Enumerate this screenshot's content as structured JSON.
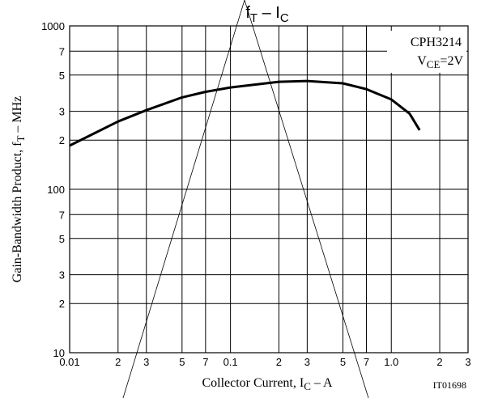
{
  "chart_data": {
    "type": "line",
    "title_parts": [
      "f",
      "T",
      " – I",
      "C"
    ],
    "y_label_parts": [
      "Gain-Bandwidth Product, f",
      "T",
      " – MHz"
    ],
    "x_label_parts": [
      "Collector Current, I",
      "C",
      " – A"
    ],
    "annotation_device": "CPH3214",
    "annotation_condition_parts": [
      "V",
      "CE",
      "=2V"
    ],
    "figure_id": "IT01698",
    "log_x": true,
    "log_y": true,
    "grid": true,
    "xlim": [
      0.01,
      3
    ],
    "ylim": [
      10,
      1000
    ],
    "xticks": [
      0.01,
      {
        "value": 0.02,
        "label": "2"
      },
      {
        "value": 0.03,
        "label": "3"
      },
      {
        "value": 0.05,
        "label": "5"
      },
      {
        "value": 0.07,
        "label": "7"
      },
      0.1,
      {
        "value": 0.2,
        "label": "2"
      },
      {
        "value": 0.3,
        "label": "3"
      },
      {
        "value": 0.5,
        "label": "5"
      },
      {
        "value": 0.7,
        "label": "7"
      },
      {
        "value": 1,
        "label": "1.0"
      },
      {
        "value": 2,
        "label": "2"
      },
      {
        "value": 3,
        "label": "3"
      }
    ],
    "yticks": [
      10,
      {
        "value": 20,
        "label": "2"
      },
      {
        "value": 30,
        "label": "3"
      },
      {
        "value": 50,
        "label": "5"
      },
      {
        "value": 70,
        "label": "7"
      },
      100,
      {
        "value": 200,
        "label": "2"
      },
      {
        "value": 300,
        "label": "3"
      },
      {
        "value": 500,
        "label": "5"
      },
      {
        "value": 700,
        "label": "7"
      },
      1000
    ],
    "x": [
      0.01,
      0.02,
      0.03,
      0.05,
      0.07,
      0.1,
      0.2,
      0.3,
      0.5,
      0.7,
      1.0,
      1.3,
      1.5
    ],
    "series": [
      {
        "color": "#000000",
        "values": [
          185,
          260,
          305,
          365,
          395,
          420,
          455,
          460,
          445,
          410,
          355,
          290,
          230
        ]
      }
    ]
  }
}
